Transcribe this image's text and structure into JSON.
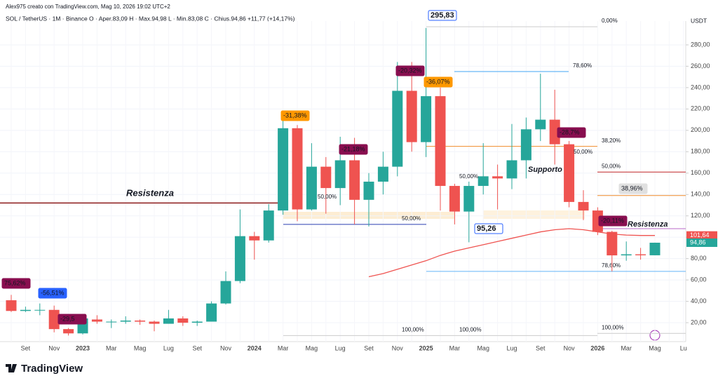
{
  "chart_data": {
    "type": "candlestick",
    "credit": "Alex975 creato con TradingView.com, Mag 10, 2026 19:02 UTC+2",
    "legend_line": "SOL / TetherUS · 1M · Binance   O · Aper.83,09   H · Max.94,98   L · Min.83,08   C · Chius.94,86   +11,77 (+14,17%)",
    "currency": "USDT",
    "brand": "TradingView",
    "categories": [
      null,
      "Set",
      null,
      "Nov",
      null,
      "2023",
      null,
      "Mar",
      null,
      "Mag",
      null,
      "Lug",
      null,
      "Set",
      null,
      "Nov",
      null,
      "2024",
      null,
      "Mar",
      null,
      "Mag",
      null,
      "Lug",
      null,
      "Set",
      null,
      "Nov",
      null,
      "2025",
      null,
      "Mar",
      null,
      "Mag",
      null,
      "Lug",
      null,
      "Set",
      null,
      "Nov",
      null,
      "2026",
      null,
      "Mar",
      null,
      "Mag",
      null,
      "Lu"
    ],
    "open": [
      41,
      31,
      32,
      32,
      14,
      10,
      23,
      21,
      21,
      22,
      21,
      19,
      24,
      20,
      21,
      38,
      59,
      101,
      97,
      125,
      202,
      126,
      166,
      146,
      172,
      135,
      152,
      166,
      237,
      189,
      232,
      148,
      124,
      148,
      157,
      155,
      172,
      201,
      210,
      187,
      133,
      125,
      105,
      83,
      84,
      83.09,
      null,
      null
    ],
    "high": [
      46,
      35,
      38,
      36,
      15,
      26,
      27,
      23,
      26,
      23,
      22,
      32,
      26,
      22,
      40,
      68,
      126,
      105,
      131,
      210,
      205,
      188,
      175,
      194,
      193,
      160,
      180,
      264,
      264,
      295.83,
      240,
      150,
      152,
      188,
      168,
      206,
      212,
      253,
      238,
      190,
      144,
      128,
      106,
      96,
      90,
      94.98,
      null,
      null
    ],
    "low": [
      30,
      30,
      27,
      11,
      8,
      9,
      19,
      15,
      19,
      18,
      12,
      19,
      17,
      17,
      21,
      37,
      57,
      79,
      95,
      121,
      115,
      125,
      122,
      130,
      112,
      110,
      140,
      157,
      180,
      175,
      125,
      112,
      95.26,
      140,
      126,
      145,
      155,
      190,
      168,
      128,
      116,
      102,
      68,
      78,
      79,
      83.08,
      null,
      null
    ],
    "close": [
      31,
      32,
      32,
      14,
      10,
      24,
      21,
      21,
      22,
      21,
      19,
      24,
      20,
      21,
      38,
      59,
      101,
      97,
      125,
      202,
      126,
      166,
      146,
      172,
      135,
      152,
      166,
      237,
      189,
      232,
      148,
      124,
      148,
      157,
      155,
      172,
      201,
      210,
      187,
      133,
      125,
      105,
      83,
      84,
      83.09,
      94.86,
      null,
      null
    ],
    "up_color": "#26a69a",
    "down_color": "#ef5350",
    "series": [
      {
        "color": "#ef5350",
        "values": [
          null,
          null,
          null,
          null,
          null,
          null,
          null,
          null,
          null,
          null,
          null,
          null,
          null,
          null,
          null,
          null,
          null,
          null,
          null,
          null,
          null,
          null,
          null,
          null,
          null,
          63,
          66,
          70,
          74,
          78,
          83,
          87,
          90,
          93,
          96,
          99,
          102,
          105,
          107,
          108,
          107,
          105,
          103,
          102,
          101.64,
          101.64,
          null,
          null
        ]
      }
    ],
    "ylim": [
      2.3,
      302.3
    ],
    "yticks": [
      {
        "value": 20,
        "label": "20,00"
      },
      {
        "value": 40,
        "label": "40,00"
      },
      {
        "value": 60,
        "label": "60,00"
      },
      {
        "value": 80,
        "label": "80,00"
      },
      {
        "value": 100,
        "label": "100,00"
      },
      {
        "value": 120,
        "label": "120,00"
      },
      {
        "value": 140,
        "label": "140,00"
      },
      {
        "value": 160,
        "label": "160,00"
      },
      {
        "value": 180,
        "label": "180,00"
      },
      {
        "value": 200,
        "label": "200,00"
      },
      {
        "value": 220,
        "label": "220,00"
      },
      {
        "value": 240,
        "label": "240,00"
      },
      {
        "value": 260,
        "label": "260,00"
      },
      {
        "value": 280,
        "label": "280,00"
      }
    ],
    "grid": true,
    "levels": [
      {
        "value": 132,
        "color": "#8b1a1a"
      },
      {
        "value": 112,
        "label": "50,00%",
        "color": "#2a3fb0"
      },
      {
        "value": 185,
        "label": "38,20%",
        "color": "#f08c2a"
      },
      {
        "value": 161,
        "label": "50,00%",
        "color": "#c62828"
      },
      {
        "value": 139,
        "color": "#f08c2a"
      },
      {
        "value": 255,
        "label": "78,60%",
        "color": "#42a5f5"
      },
      {
        "value": 68,
        "label": "78,60%",
        "color": "#64b5f6"
      },
      {
        "value": 297,
        "label": "0,00%",
        "color": "#cccccc"
      },
      {
        "value": 8,
        "label": "100,00%",
        "color": "#cccccc"
      },
      {
        "value": 8,
        "label": "100,00%",
        "color": "#cccccc"
      },
      {
        "value": 10,
        "label": "100,00%",
        "color": "#cccccc"
      },
      {
        "value": 108,
        "color": "#ba68c8"
      }
    ],
    "price_labels": [
      {
        "value": 101.64,
        "label": "101,64",
        "color": "#ef5350"
      },
      {
        "value": 94.86,
        "label": "94,86",
        "color": "#26a69a"
      }
    ],
    "annotations": [
      "Resistenza",
      "Supporto",
      "Resistenza",
      "75,62%",
      "-56,51%",
      "-29,5",
      "-31,38%",
      "-21,18%",
      "-20,32%",
      "-36,07%",
      "-28,7%",
      "-20,11%",
      "38,96%",
      "295,83",
      "95,26",
      "50,00%",
      "50,00%",
      "50,00%"
    ]
  }
}
